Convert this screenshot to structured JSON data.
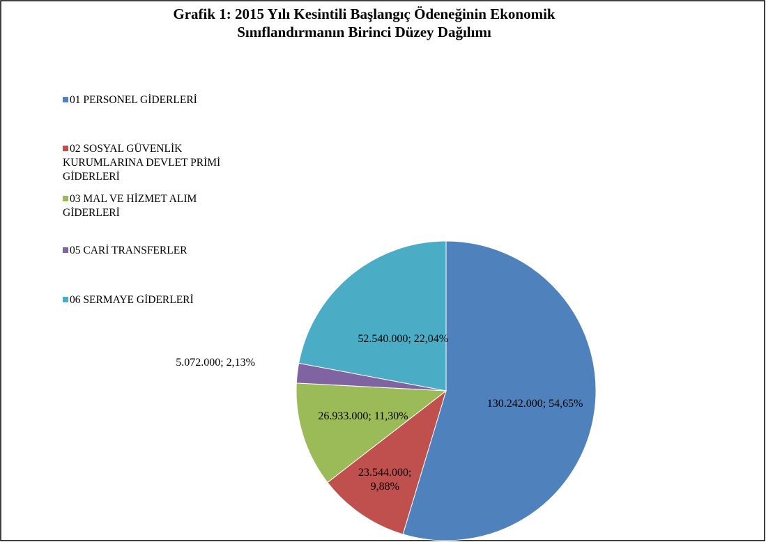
{
  "chart_data": {
    "type": "pie",
    "title": [
      "Grafik 1: 2015  Yılı Kesintili Başlangıç Ödeneğinin Ekonomik",
      "Sınıflandırmanın Birinci Düzey Dağılımı"
    ],
    "categories": [
      "01 PERSONEL GİDERLERİ",
      "02 SOSYAL GÜVENLİK KURUMLARINA DEVLET PRİMİ GİDERLERİ",
      "03 MAL VE HİZMET ALIM GİDERLERİ",
      "05 CARİ TRANSFERLER",
      "06 SERMAYE GİDERLERİ"
    ],
    "values": [
      130242000,
      23544000,
      26933000,
      5072000,
      52540000
    ],
    "value_labels": [
      "130.242.000; 54,65%",
      "23.544.000; 9,88%",
      "26.933.000; 11,30%",
      "5.072.000; 2,13%",
      "52.540.000; 22,04%"
    ],
    "colors": [
      "#4f81bd",
      "#c0504d",
      "#9bbb59",
      "#8064a2",
      "#4bacc6"
    ],
    "legend": "left"
  }
}
